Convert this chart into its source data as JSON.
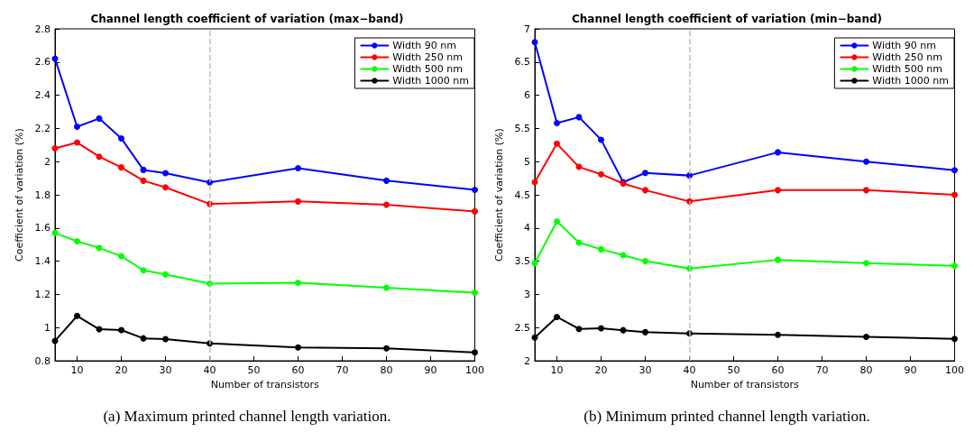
{
  "chart_data": [
    {
      "type": "line",
      "title": "Channel length coefficient of variation (max−band)",
      "xlabel": "Number of transistors",
      "ylabel": "Coefficient of variation (%)",
      "x": [
        5,
        10,
        15,
        20,
        25,
        30,
        40,
        60,
        80,
        100
      ],
      "xlim": [
        5,
        100
      ],
      "xticks": [
        10,
        20,
        30,
        40,
        50,
        60,
        70,
        80,
        90,
        100
      ],
      "ylim": [
        0.8,
        2.8
      ],
      "yticks": [
        0.8,
        1,
        1.2,
        1.4,
        1.6,
        1.8,
        2,
        2.2,
        2.4,
        2.6,
        2.8
      ],
      "grid": false,
      "legend": "top right",
      "marker": "circle",
      "line_style": "solid",
      "series": [
        {
          "name": "Width 90 nm",
          "color": "#0000ff",
          "values": [
            2.62,
            2.21,
            2.26,
            2.14,
            1.95,
            1.93,
            1.875,
            1.96,
            1.885,
            1.83
          ]
        },
        {
          "name": "Width 250 nm",
          "color": "#ff0000",
          "values": [
            2.08,
            2.115,
            2.03,
            1.965,
            1.885,
            1.845,
            1.745,
            1.76,
            1.74,
            1.7
          ]
        },
        {
          "name": "Width 500 nm",
          "color": "#00ff00",
          "values": [
            1.57,
            1.52,
            1.48,
            1.43,
            1.345,
            1.32,
            1.265,
            1.27,
            1.24,
            1.21
          ]
        },
        {
          "name": "Width 1000 nm",
          "color": "#000000",
          "values": [
            0.92,
            1.07,
            0.99,
            0.985,
            0.935,
            0.93,
            0.905,
            0.88,
            0.875,
            0.85
          ]
        }
      ],
      "ref_lines": [
        {
          "axis": "x",
          "value": 40,
          "color": "#c0c0c0",
          "line_style": "dashed"
        }
      ],
      "annotations": [
        "(a) Maximum printed channel length variation."
      ]
    },
    {
      "type": "line",
      "title": "Channel length coefficient of variation (min−band)",
      "xlabel": "Number of transistors",
      "ylabel": "Coefficient of variation (%)",
      "x": [
        5,
        10,
        15,
        20,
        25,
        30,
        40,
        60,
        80,
        100
      ],
      "xlim": [
        5,
        100
      ],
      "xticks": [
        10,
        20,
        30,
        40,
        50,
        60,
        70,
        80,
        90,
        100
      ],
      "ylim": [
        2,
        7
      ],
      "yticks": [
        2,
        2.5,
        3,
        3.5,
        4,
        4.5,
        5,
        5.5,
        6,
        6.5,
        7
      ],
      "grid": false,
      "legend": "top right",
      "marker": "circle",
      "line_style": "solid",
      "series": [
        {
          "name": "Width 90 nm",
          "color": "#0000ff",
          "values": [
            6.8,
            5.58,
            5.67,
            5.33,
            4.69,
            4.83,
            4.79,
            5.14,
            5.0,
            4.87
          ]
        },
        {
          "name": "Width 250 nm",
          "color": "#ff0000",
          "values": [
            4.69,
            5.27,
            4.92,
            4.81,
            4.67,
            4.57,
            4.4,
            4.57,
            4.57,
            4.5
          ]
        },
        {
          "name": "Width 500 nm",
          "color": "#00ff00",
          "values": [
            3.47,
            4.1,
            3.78,
            3.68,
            3.59,
            3.5,
            3.39,
            3.52,
            3.47,
            3.43
          ]
        },
        {
          "name": "Width 1000 nm",
          "color": "#000000",
          "values": [
            2.35,
            2.66,
            2.48,
            2.49,
            2.46,
            2.43,
            2.41,
            2.39,
            2.36,
            2.33
          ]
        }
      ],
      "ref_lines": [
        {
          "axis": "x",
          "value": 40,
          "color": "#c0c0c0",
          "line_style": "dashed"
        }
      ],
      "annotations": [
        "(b) Minimum printed channel length variation."
      ]
    }
  ]
}
